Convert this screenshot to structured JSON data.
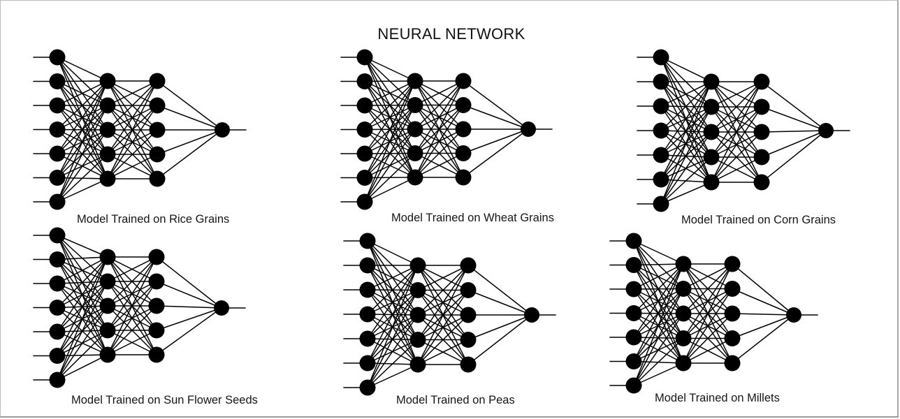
{
  "title": "NEURAL NETWORK",
  "networks": [
    {
      "caption": "Model Trained on Rice Grains",
      "layers": [
        7,
        5,
        5,
        1
      ]
    },
    {
      "caption": "Model Trained on Wheat Grains",
      "layers": [
        7,
        5,
        5,
        1
      ]
    },
    {
      "caption": "Model Trained on Corn Grains",
      "layers": [
        7,
        5,
        5,
        1
      ]
    },
    {
      "caption": "Model Trained on Sun Flower Seeds",
      "layers": [
        7,
        5,
        5,
        1
      ]
    },
    {
      "caption": "Model Trained on Peas",
      "layers": [
        7,
        5,
        5,
        1
      ]
    },
    {
      "caption": "Model Trained on Millets",
      "layers": [
        7,
        5,
        5,
        1
      ]
    }
  ],
  "colors": {
    "node": "#000000",
    "edge": "#000000",
    "background": "#ffffff"
  }
}
